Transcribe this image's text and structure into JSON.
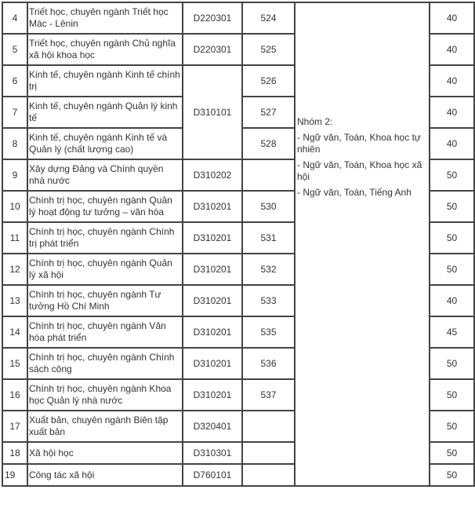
{
  "rows": [
    {
      "stt": "4",
      "name": "Triết học, chuyên ngành Triết học Mác - Lênin",
      "code": "D220301",
      "code2": "524",
      "quota": "40"
    },
    {
      "stt": "5",
      "name": "Triết học, chuyên ngành Chủ nghĩa xã hội khoa học",
      "code": "D220301",
      "code2": "525",
      "quota": "40"
    },
    {
      "stt": "6",
      "name": "Kinh tế, chuyên ngành Kinh tế chính trị",
      "code": "D310101",
      "code2": "526",
      "quota": "40"
    },
    {
      "stt": "7",
      "name": "Kinh tế, chuyên ngành Quản lý kinh tế",
      "code": "",
      "code2": "527",
      "quota": "40"
    },
    {
      "stt": "8",
      "name": "Kinh tế, chuyên ngành Kinh tế và Quản lý (chất lượng cao)",
      "code": "",
      "code2": "528",
      "quota": "40"
    },
    {
      "stt": "9",
      "name": "Xây dựng Đảng và Chính quyền nhà nước",
      "code": "D310202",
      "code2": "",
      "quota": "50"
    },
    {
      "stt": "10",
      "name": "Chính trị học, chuyên ngành Quản lý hoạt động tư tưởng – văn hóa",
      "code": "D310201",
      "code2": "530",
      "quota": "50"
    },
    {
      "stt": "11",
      "name": "Chính trị học, chuyên ngành Chính trị phát triển",
      "code": "D310201",
      "code2": "531",
      "quota": "50"
    },
    {
      "stt": "12",
      "name": "Chính trị học, chuyên ngành Quản lý xã hội",
      "code": "D310201",
      "code2": "532",
      "quota": "50"
    },
    {
      "stt": "13",
      "name": "Chính trị học, chuyên ngành Tư tưởng Hồ Chí Minh",
      "code": "D310201",
      "code2": "533",
      "quota": "40"
    },
    {
      "stt": "14",
      "name": "Chính trị học, chuyên ngành Văn hóa phát triển",
      "code": "D310201",
      "code2": "535",
      "quota": "45"
    },
    {
      "stt": "15",
      "name": "Chính trị học, chuyên ngành Chính sách công",
      "code": "D310201",
      "code2": "536",
      "quota": "50"
    },
    {
      "stt": "16",
      "name": "Chính trị học, chuyên ngành Khoa học Quản lý nhà nước",
      "code": "D310201",
      "code2": "537",
      "quota": "50"
    },
    {
      "stt": "17",
      "name": "Xuất bản, chuyên ngành Biên tập xuất bản",
      "code": "D320401",
      "code2": "",
      "quota": "50"
    },
    {
      "stt": "18",
      "name": "Xã hội học",
      "code": "D310301",
      "code2": "",
      "quota": "50"
    },
    {
      "stt": "19",
      "name": "Công tác xã hội",
      "code": "D760101",
      "code2": "",
      "quota": "50"
    }
  ],
  "group": {
    "title": "Nhóm 2:",
    "items": [
      "- Ngữ văn, Toán, Khoa học tự nhiên",
      "- Ngữ văn, Toán, Khoa học xã hội",
      "- Ngữ văn, Toán, Tiếng Anh"
    ]
  }
}
